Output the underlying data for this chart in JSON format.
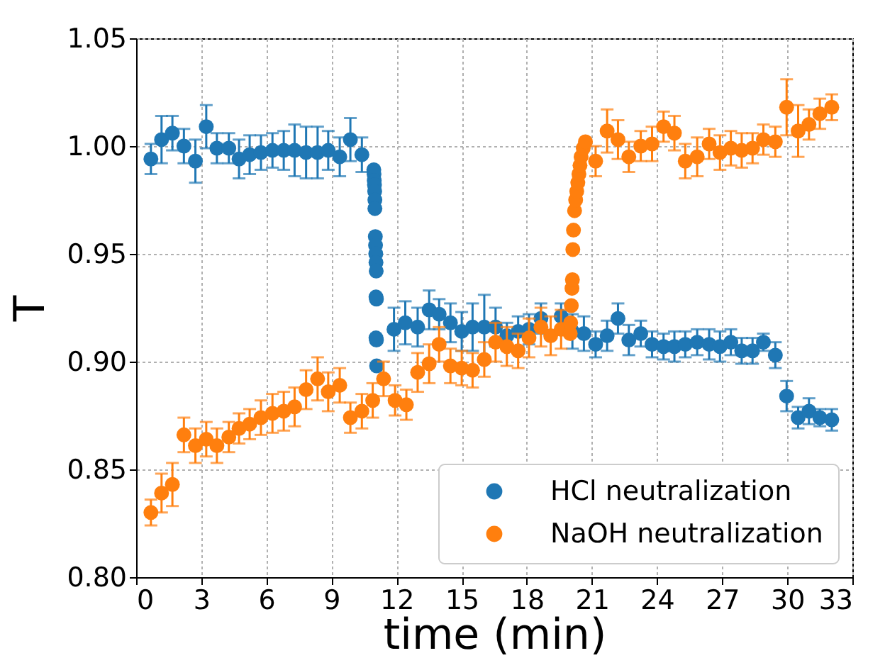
{
  "chart_data": {
    "type": "scatter",
    "xlabel": "time (min)",
    "ylabel": "T",
    "xlim": [
      0,
      33
    ],
    "ylim": [
      0.8,
      1.05
    ],
    "xticks": [
      0,
      3,
      6,
      9,
      12,
      15,
      18,
      21,
      24,
      27,
      30,
      33
    ],
    "yticks": [
      {
        "value": 0.8,
        "label": "0.80"
      },
      0.85,
      {
        "value": 0.9,
        "label": "0.90"
      },
      0.95,
      {
        "value": 1.0,
        "label": "1.00"
      },
      1.05
    ],
    "grid": true,
    "legend": "bottom right",
    "marker": "circle",
    "series": [
      {
        "name": "HCl neutralization",
        "color": "#1f77b4",
        "x": [
          0.68,
          1.17,
          1.67,
          2.2,
          2.73,
          3.23,
          3.72,
          4.27,
          4.74,
          5.23,
          5.75,
          6.28,
          6.8,
          7.3,
          7.83,
          8.36,
          8.85,
          9.38,
          9.87,
          10.4,
          10.95,
          10.96,
          10.97,
          10.98,
          10.99,
          11.0,
          11.0,
          11.02,
          11.03,
          11.04,
          11.05,
          11.06,
          11.05,
          11.07,
          11.05,
          11.07,
          11.08,
          11.88,
          12.4,
          12.97,
          13.5,
          13.96,
          14.48,
          15.0,
          15.5,
          16.04,
          16.56,
          17.08,
          17.6,
          18.1,
          18.65,
          19.58,
          20.1,
          20.63,
          21.17,
          21.7,
          22.2,
          22.7,
          23.25,
          23.77,
          24.3,
          24.8,
          25.3,
          25.85,
          26.4,
          26.9,
          27.4,
          27.9,
          28.4,
          28.9,
          29.45,
          29.97,
          30.5,
          31.0,
          31.5,
          32.05
        ],
        "values": [
          0.994,
          1.003,
          1.006,
          1.0,
          0.993,
          1.009,
          0.999,
          0.999,
          0.994,
          0.996,
          0.997,
          0.998,
          0.998,
          0.998,
          0.997,
          0.997,
          0.998,
          0.995,
          1.003,
          0.996,
          0.989,
          0.987,
          0.984,
          0.982,
          0.979,
          0.975,
          0.971,
          0.958,
          0.954,
          0.95,
          0.946,
          0.942,
          0.93,
          0.929,
          0.911,
          0.91,
          0.898,
          0.915,
          0.918,
          0.916,
          0.924,
          0.922,
          0.918,
          0.914,
          0.916,
          0.916,
          0.916,
          0.912,
          0.914,
          0.915,
          0.92,
          0.921,
          0.914,
          0.913,
          0.908,
          0.912,
          0.92,
          0.91,
          0.913,
          0.908,
          0.907,
          0.907,
          0.908,
          0.909,
          0.908,
          0.907,
          0.909,
          0.905,
          0.905,
          0.909,
          0.903,
          0.884,
          0.874,
          0.877,
          0.874,
          0.873
        ],
        "errors": [
          0.007,
          0.011,
          0.008,
          0.008,
          0.01,
          0.01,
          0.007,
          0.007,
          0.009,
          0.009,
          0.008,
          0.008,
          0.009,
          0.012,
          0.012,
          0.012,
          0.009,
          0.009,
          0.01,
          0.008,
          null,
          null,
          null,
          null,
          null,
          null,
          null,
          null,
          null,
          null,
          null,
          null,
          null,
          null,
          null,
          null,
          null,
          0.01,
          0.01,
          0.009,
          0.009,
          0.007,
          0.009,
          0.009,
          0.011,
          0.015,
          0.009,
          0.006,
          0.007,
          0.007,
          0.007,
          0.006,
          0.008,
          0.008,
          0.006,
          0.007,
          0.007,
          0.007,
          0.006,
          0.006,
          0.006,
          0.007,
          0.006,
          0.006,
          0.007,
          0.007,
          0.006,
          0.006,
          0.006,
          0.004,
          0.006,
          0.007,
          0.005,
          0.006,
          0.004,
          0.005
        ]
      },
      {
        "name": "NaOH neutralization",
        "color": "#ff7f0e",
        "x": [
          0.68,
          1.17,
          1.67,
          2.2,
          2.73,
          3.23,
          3.72,
          4.27,
          4.74,
          5.23,
          5.75,
          6.28,
          6.8,
          7.3,
          7.83,
          8.36,
          8.85,
          9.38,
          9.87,
          10.4,
          10.9,
          11.4,
          11.93,
          12.45,
          12.97,
          13.5,
          13.96,
          14.48,
          15.0,
          15.5,
          16.04,
          16.56,
          17.08,
          17.6,
          18.1,
          18.65,
          19.1,
          19.58,
          20.0,
          20.02,
          20.05,
          20.08,
          20.1,
          20.12,
          20.15,
          20.2,
          20.25,
          20.3,
          20.35,
          20.4,
          20.45,
          20.5,
          20.6,
          20.7,
          21.17,
          21.7,
          22.2,
          22.7,
          23.25,
          23.77,
          24.3,
          24.8,
          25.3,
          25.85,
          26.4,
          26.9,
          27.4,
          27.9,
          28.4,
          28.9,
          29.45,
          29.97,
          30.5,
          31.0,
          31.5,
          32.05
        ],
        "values": [
          0.83,
          0.839,
          0.843,
          0.866,
          0.861,
          0.864,
          0.861,
          0.865,
          0.869,
          0.871,
          0.874,
          0.876,
          0.877,
          0.879,
          0.887,
          0.892,
          0.886,
          0.889,
          0.874,
          0.877,
          0.882,
          0.892,
          0.882,
          0.88,
          0.895,
          0.899,
          0.908,
          0.898,
          0.897,
          0.896,
          0.901,
          0.909,
          0.907,
          0.905,
          0.911,
          0.916,
          0.912,
          0.915,
          0.913,
          0.918,
          0.926,
          0.934,
          0.938,
          0.952,
          0.961,
          0.97,
          0.975,
          0.979,
          0.983,
          0.987,
          0.991,
          0.995,
          0.999,
          1.002,
          0.993,
          1.007,
          1.003,
          0.995,
          1.0,
          1.001,
          1.009,
          1.006,
          0.993,
          0.995,
          1.001,
          0.997,
          0.999,
          0.998,
          0.999,
          1.003,
          1.002,
          1.018,
          1.007,
          1.01,
          1.015,
          1.018
        ],
        "errors": [
          0.006,
          0.009,
          0.01,
          0.008,
          0.008,
          0.008,
          0.008,
          0.007,
          0.007,
          0.007,
          0.008,
          0.009,
          0.009,
          0.009,
          0.009,
          0.01,
          0.009,
          0.008,
          0.007,
          0.008,
          0.008,
          0.008,
          0.007,
          0.007,
          0.009,
          0.009,
          0.008,
          0.008,
          0.008,
          0.008,
          0.008,
          0.009,
          0.009,
          0.008,
          0.009,
          0.009,
          0.009,
          0.009,
          null,
          null,
          null,
          null,
          null,
          null,
          null,
          null,
          null,
          null,
          null,
          null,
          null,
          null,
          null,
          null,
          0.007,
          0.01,
          0.009,
          0.007,
          0.007,
          0.008,
          0.007,
          0.008,
          0.008,
          0.009,
          0.007,
          0.008,
          0.008,
          0.008,
          0.007,
          0.007,
          0.007,
          0.013,
          0.012,
          0.007,
          0.007,
          0.006
        ]
      }
    ]
  }
}
